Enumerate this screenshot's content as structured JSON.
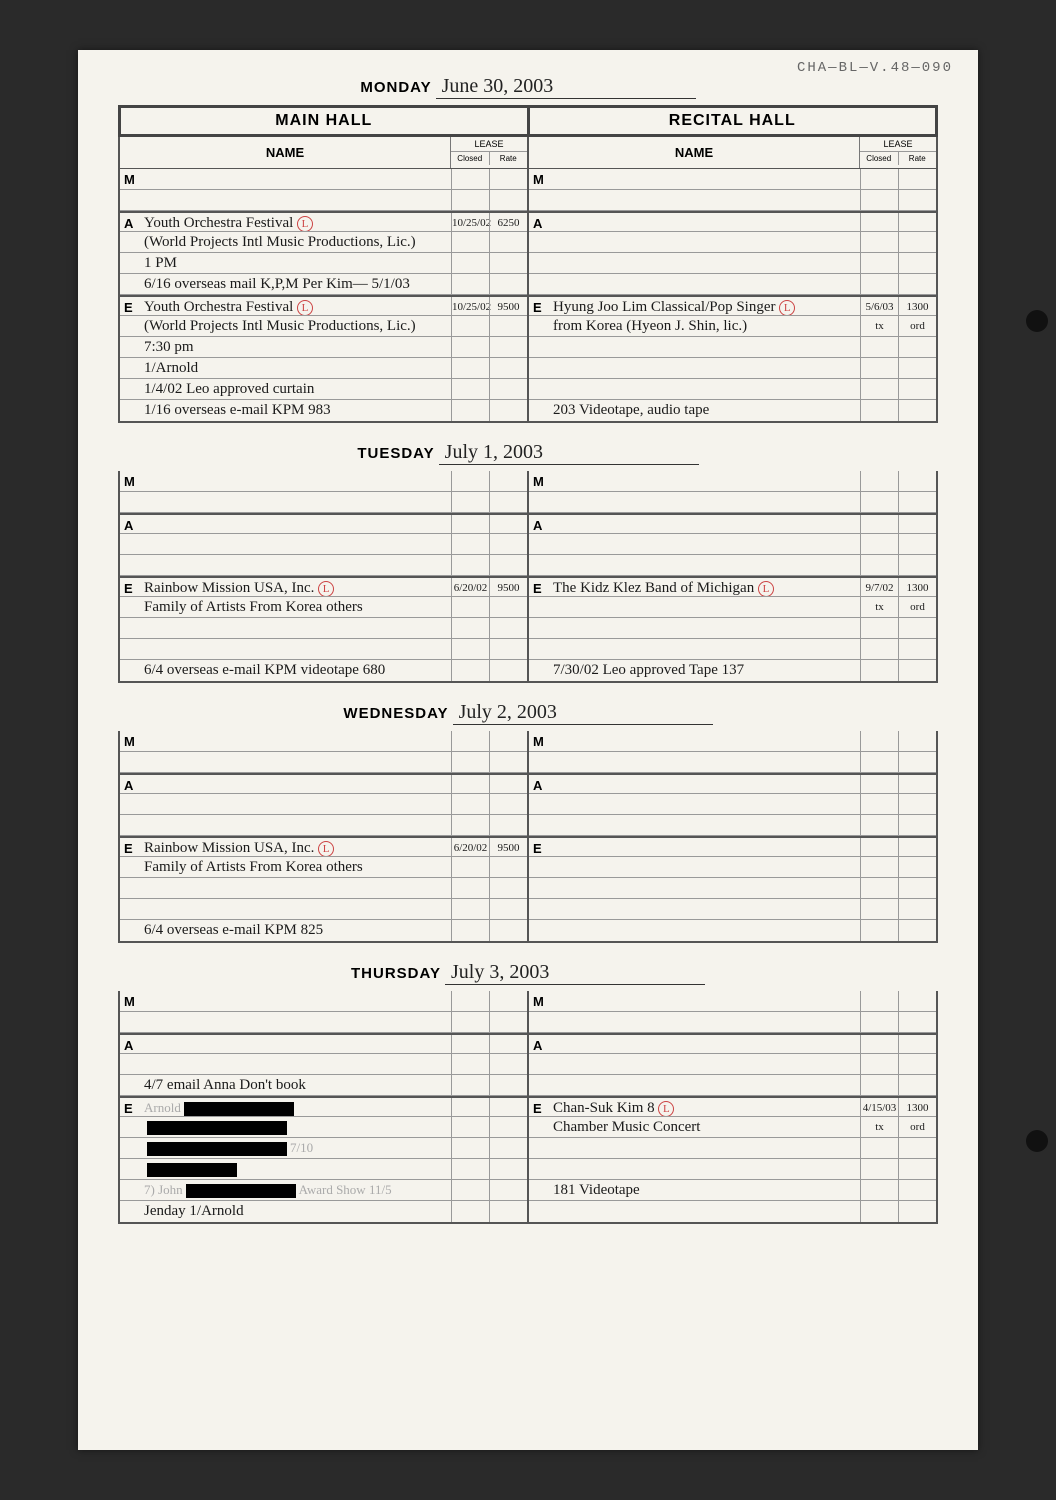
{
  "doc_id": "CHA—BL—V.48—090",
  "background_color": "#f5f3ed",
  "border_color": "#444444",
  "line_color": "#999999",
  "handwriting_color": "#1a1a1a",
  "faint_color": "#aaaaaa",
  "circle_color": "#c44444",
  "headers": {
    "main_hall": "MAIN HALL",
    "recital_hall": "RECITAL HALL",
    "name": "NAME",
    "lease": "LEASE",
    "closed": "Closed",
    "rate": "Rate"
  },
  "days": [
    {
      "label": "MONDAY",
      "date": "June 30, 2003",
      "main": {
        "M": [
          {
            "name": "",
            "closed": "",
            "rate": "",
            "faint": true
          },
          {
            "name": "",
            "closed": "",
            "rate": ""
          }
        ],
        "A": [
          {
            "name": "Youth Orchestra Festival",
            "closed": "10/25/02",
            "rate": "6250",
            "circ": "L"
          },
          {
            "name": "(World Projects Intl Music Productions, Lic.)",
            "closed": "",
            "rate": ""
          },
          {
            "name": "1 PM",
            "closed": "",
            "rate": "",
            "faint": true
          },
          {
            "name": "6/16 overseas mail K,P,M   Per Kim— 5/1/03",
            "closed": "",
            "rate": "",
            "faint": true
          }
        ],
        "E": [
          {
            "name": "Youth Orchestra Festival",
            "closed": "10/25/02",
            "rate": "9500",
            "circ": "L"
          },
          {
            "name": "(World Projects Intl Music Productions, Lic.)",
            "closed": "",
            "rate": ""
          },
          {
            "name": "7:30 pm",
            "closed": "",
            "rate": "",
            "faint": true
          },
          {
            "name": "1/Arnold",
            "closed": "",
            "rate": "",
            "faint": true
          },
          {
            "name": "1/4/02 Leo approved curtain",
            "closed": "",
            "rate": "",
            "faint": true
          },
          {
            "name": "1/16 overseas e-mail KPM      983",
            "closed": "",
            "rate": "",
            "faint": true
          }
        ]
      },
      "recital": {
        "M": [
          {
            "name": "",
            "closed": "",
            "rate": ""
          },
          {
            "name": "",
            "closed": "",
            "rate": ""
          }
        ],
        "A": [
          {
            "name": "",
            "closed": "",
            "rate": ""
          },
          {
            "name": "",
            "closed": "",
            "rate": ""
          },
          {
            "name": "",
            "closed": "",
            "rate": ""
          },
          {
            "name": "",
            "closed": "",
            "rate": ""
          }
        ],
        "E": [
          {
            "name": "Hyung Joo Lim Classical/Pop Singer",
            "closed": "5/6/03",
            "rate": "1300",
            "circ": "L"
          },
          {
            "name": "from Korea (Hyeon J. Shin, lic.)",
            "closed": "tx",
            "rate": "ord",
            "faint": true
          },
          {
            "name": "",
            "closed": "",
            "rate": ""
          },
          {
            "name": "",
            "closed": "",
            "rate": ""
          },
          {
            "name": "",
            "closed": "",
            "rate": ""
          },
          {
            "name": "203 Videotape, audio tape",
            "closed": "",
            "rate": "",
            "faint": true
          }
        ]
      }
    },
    {
      "label": "TUESDAY",
      "date": "July 1, 2003",
      "main": {
        "M": [
          {
            "name": "",
            "closed": "",
            "rate": ""
          },
          {
            "name": "",
            "closed": "",
            "rate": ""
          }
        ],
        "A": [
          {
            "name": "",
            "closed": "",
            "rate": ""
          },
          {
            "name": "",
            "closed": "",
            "rate": ""
          },
          {
            "name": "",
            "closed": "",
            "rate": ""
          }
        ],
        "E": [
          {
            "name": "Rainbow Mission USA, Inc.",
            "closed": "6/20/02",
            "rate": "9500",
            "circ": "L"
          },
          {
            "name": "Family of Artists From Korea   others",
            "closed": "",
            "rate": "",
            "faint": true
          },
          {
            "name": "",
            "closed": "",
            "rate": ""
          },
          {
            "name": "",
            "closed": "",
            "rate": ""
          },
          {
            "name": "6/4 overseas e-mail KPM videotape 680",
            "closed": "",
            "rate": "",
            "faint": true
          }
        ]
      },
      "recital": {
        "M": [
          {
            "name": "",
            "closed": "",
            "rate": ""
          },
          {
            "name": "",
            "closed": "",
            "rate": ""
          }
        ],
        "A": [
          {
            "name": "",
            "closed": "",
            "rate": ""
          },
          {
            "name": "",
            "closed": "",
            "rate": ""
          },
          {
            "name": "",
            "closed": "",
            "rate": ""
          }
        ],
        "E": [
          {
            "name": "The Kidz Klez Band of Michigan",
            "closed": "9/7/02",
            "rate": "1300",
            "circ": "L"
          },
          {
            "name": "",
            "closed": "tx",
            "rate": "ord",
            "faint": true
          },
          {
            "name": "",
            "closed": "",
            "rate": ""
          },
          {
            "name": "",
            "closed": "",
            "rate": ""
          },
          {
            "name": "7/30/02 Leo approved   Tape 137",
            "closed": "",
            "rate": "",
            "faint": true
          }
        ]
      }
    },
    {
      "label": "WEDNESDAY",
      "date": "July 2, 2003",
      "main": {
        "M": [
          {
            "name": "",
            "closed": "",
            "rate": ""
          },
          {
            "name": "",
            "closed": "",
            "rate": ""
          }
        ],
        "A": [
          {
            "name": "",
            "closed": "",
            "rate": ""
          },
          {
            "name": "",
            "closed": "",
            "rate": ""
          },
          {
            "name": "",
            "closed": "",
            "rate": ""
          }
        ],
        "E": [
          {
            "name": "Rainbow Mission USA, Inc.",
            "closed": "6/20/02",
            "rate": "9500",
            "circ": "L"
          },
          {
            "name": "Family of Artists From Korea   others",
            "closed": "",
            "rate": "",
            "faint": true
          },
          {
            "name": "",
            "closed": "",
            "rate": ""
          },
          {
            "name": "",
            "closed": "",
            "rate": ""
          },
          {
            "name": "6/4 overseas e-mail KPM    825",
            "closed": "",
            "rate": "",
            "faint": true
          }
        ]
      },
      "recital": {
        "M": [
          {
            "name": "",
            "closed": "",
            "rate": ""
          },
          {
            "name": "",
            "closed": "",
            "rate": ""
          }
        ],
        "A": [
          {
            "name": "",
            "closed": "",
            "rate": ""
          },
          {
            "name": "",
            "closed": "",
            "rate": ""
          },
          {
            "name": "",
            "closed": "",
            "rate": ""
          }
        ],
        "E": [
          {
            "name": "",
            "closed": "",
            "rate": ""
          },
          {
            "name": "",
            "closed": "",
            "rate": ""
          },
          {
            "name": "",
            "closed": "",
            "rate": ""
          },
          {
            "name": "",
            "closed": "",
            "rate": ""
          },
          {
            "name": "",
            "closed": "",
            "rate": ""
          }
        ]
      }
    },
    {
      "label": "THURSDAY",
      "date": "July 3, 2003",
      "main": {
        "M": [
          {
            "name": "",
            "closed": "",
            "rate": ""
          },
          {
            "name": "",
            "closed": "",
            "rate": ""
          }
        ],
        "A": [
          {
            "name": "",
            "closed": "",
            "rate": "",
            "faint": true
          },
          {
            "name": "",
            "closed": "",
            "rate": ""
          },
          {
            "name": "4/7 email Anna Don't book",
            "closed": "",
            "rate": "",
            "faint": true
          }
        ],
        "E": [
          {
            "name": "",
            "closed": "",
            "rate": "",
            "redact": "r1",
            "faint": true,
            "pre": "Arnold"
          },
          {
            "name": "",
            "closed": "",
            "rate": "",
            "redact": "r2",
            "faint": true
          },
          {
            "name": "",
            "closed": "",
            "rate": "",
            "redact": "r2",
            "faint": true,
            "post": "7/10"
          },
          {
            "name": "",
            "closed": "",
            "rate": "",
            "redact": "r3",
            "faint": true
          },
          {
            "name": "7) John",
            "closed": "",
            "rate": "",
            "redact": "r1",
            "faint": true,
            "post": "Award Show 11/5"
          },
          {
            "name": "Jenday  1/Arnold",
            "closed": "",
            "rate": "",
            "faint": true
          }
        ]
      },
      "recital": {
        "M": [
          {
            "name": "",
            "closed": "",
            "rate": ""
          },
          {
            "name": "",
            "closed": "",
            "rate": ""
          }
        ],
        "A": [
          {
            "name": "",
            "closed": "",
            "rate": ""
          },
          {
            "name": "",
            "closed": "",
            "rate": ""
          },
          {
            "name": "",
            "closed": "",
            "rate": ""
          }
        ],
        "E": [
          {
            "name": "Chan-Suk Kim       8",
            "closed": "4/15/03",
            "rate": "1300",
            "circ": "L"
          },
          {
            "name": "Chamber Music Concert",
            "closed": "tx",
            "rate": "ord",
            "faint": true
          },
          {
            "name": "",
            "closed": "",
            "rate": ""
          },
          {
            "name": "",
            "closed": "",
            "rate": ""
          },
          {
            "name": "181 Videotape",
            "closed": "",
            "rate": "",
            "faint": true
          },
          {
            "name": "",
            "closed": "",
            "rate": ""
          }
        ]
      }
    }
  ]
}
